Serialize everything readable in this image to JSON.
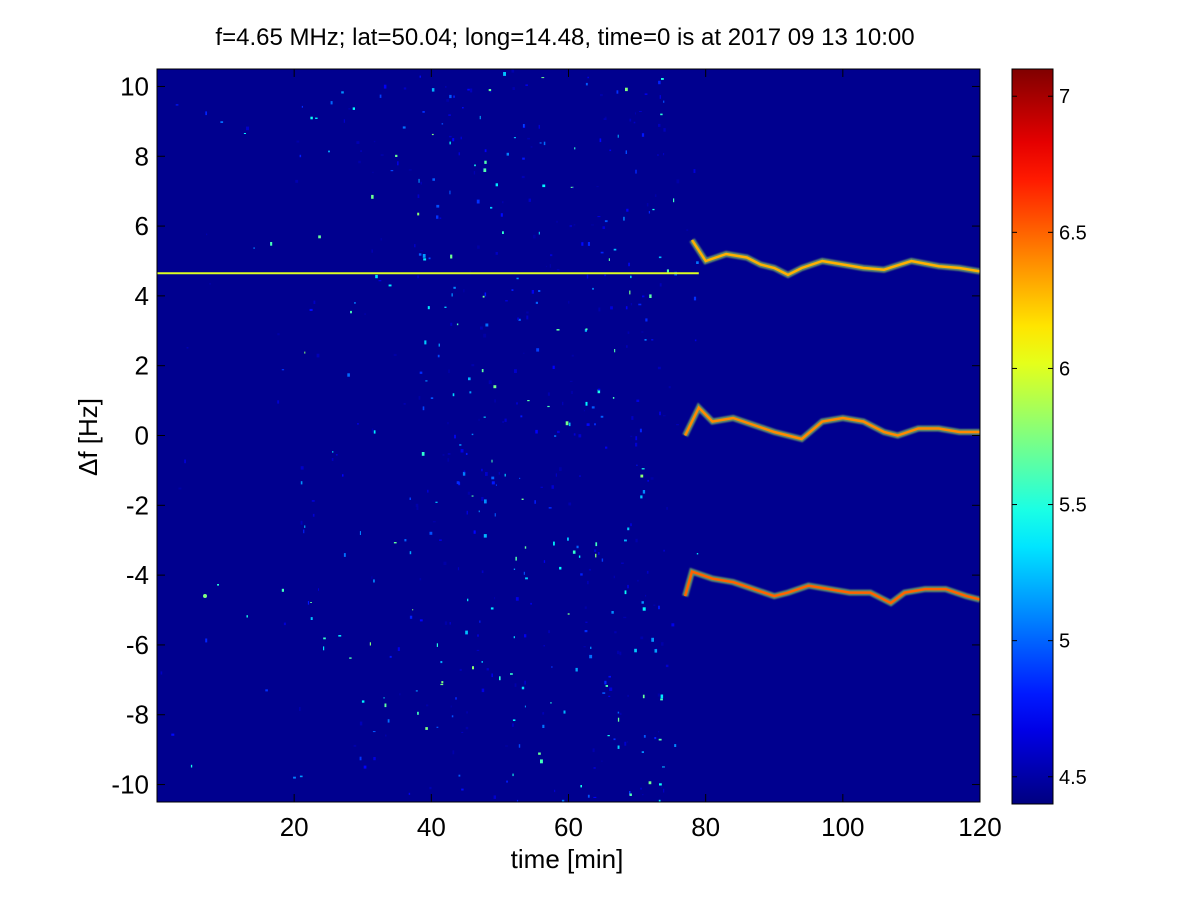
{
  "chart_data": {
    "type": "heatmap",
    "title": "f=4.65 MHz;  lat=50.04; long=14.48, time=0 is at 2017 09 13 10:00",
    "xlabel": "time [min]",
    "ylabel": "Δf [Hz]",
    "xlim": [
      0,
      120
    ],
    "ylim": [
      -10.5,
      10.5
    ],
    "x_ticks": [
      20,
      40,
      60,
      80,
      100,
      120
    ],
    "x_tick_labels": [
      "20",
      "40",
      "60",
      "80",
      "100",
      "120"
    ],
    "y_ticks": [
      10,
      8,
      6,
      4,
      2,
      0,
      -2,
      -4,
      -6,
      -8,
      -10
    ],
    "y_tick_labels": [
      "10",
      "8",
      "6",
      "4",
      "2",
      "0",
      "-2",
      "-4",
      "-6",
      "-8",
      "-10"
    ],
    "colorbar": {
      "range": [
        4.4,
        7.1
      ],
      "ticks": [
        7,
        6.5,
        6,
        5.5,
        5,
        4.5
      ],
      "tick_labels": [
        "7",
        "6.5",
        "6",
        "5.5",
        "5",
        "4.5"
      ],
      "colormap": "jet"
    },
    "background_level": 4.45,
    "noise_band": {
      "x_range": [
        40,
        75
      ],
      "level_range": [
        4.5,
        5.8
      ]
    },
    "traces": [
      {
        "points": [
          [
            0,
            4.65
          ],
          [
            79,
            4.65
          ]
        ],
        "level": 6.0
      },
      {
        "points": [
          [
            78,
            5.6
          ],
          [
            80,
            5.0
          ],
          [
            83,
            5.2
          ],
          [
            86,
            5.1
          ],
          [
            88,
            4.9
          ],
          [
            90,
            4.8
          ],
          [
            92,
            4.6
          ],
          [
            94,
            4.8
          ],
          [
            97,
            5.0
          ],
          [
            100,
            4.9
          ],
          [
            103,
            4.8
          ],
          [
            106,
            4.75
          ],
          [
            110,
            5.0
          ],
          [
            114,
            4.85
          ],
          [
            117,
            4.8
          ],
          [
            120,
            4.7
          ]
        ],
        "level": 6.3
      },
      {
        "points": [
          [
            77,
            0.0
          ],
          [
            79,
            0.8
          ],
          [
            81,
            0.4
          ],
          [
            84,
            0.5
          ],
          [
            87,
            0.3
          ],
          [
            90,
            0.1
          ],
          [
            92,
            0.0
          ],
          [
            94,
            -0.1
          ],
          [
            97,
            0.4
          ],
          [
            100,
            0.5
          ],
          [
            103,
            0.4
          ],
          [
            106,
            0.1
          ],
          [
            108,
            0.0
          ],
          [
            111,
            0.2
          ],
          [
            114,
            0.2
          ],
          [
            117,
            0.1
          ],
          [
            120,
            0.1
          ]
        ],
        "level": 6.4
      },
      {
        "points": [
          [
            77,
            -4.6
          ],
          [
            78,
            -3.9
          ],
          [
            81,
            -4.1
          ],
          [
            84,
            -4.2
          ],
          [
            87,
            -4.4
          ],
          [
            90,
            -4.6
          ],
          [
            92,
            -4.5
          ],
          [
            95,
            -4.3
          ],
          [
            98,
            -4.4
          ],
          [
            101,
            -4.5
          ],
          [
            104,
            -4.5
          ],
          [
            107,
            -4.8
          ],
          [
            109,
            -4.5
          ],
          [
            112,
            -4.4
          ],
          [
            115,
            -4.4
          ],
          [
            118,
            -4.6
          ],
          [
            120,
            -4.7
          ]
        ],
        "level": 6.5
      }
    ],
    "dot": {
      "x": 7,
      "y": -4.6
    }
  }
}
